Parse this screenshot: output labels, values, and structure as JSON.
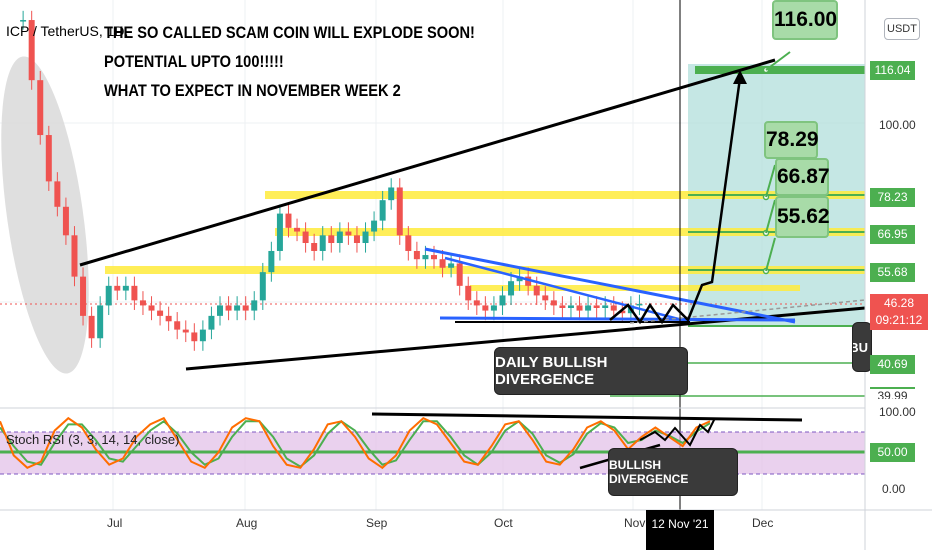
{
  "header": {
    "symbol": "ICP / TetherUS, 1D,",
    "currency_button": "USDT"
  },
  "annotations": {
    "title_lines": [
      "THE SO CALLED SCAM COIN WILL EXPLODE SOON!",
      "POTENTIAL  UPTO 100!!!!!",
      "WHAT TO EXPECT IN NOVEMBER WEEK 2"
    ],
    "daily_bullish_divergence": "DAILY BULLISH DIVERGENCE",
    "bullish_divergence": "BULLISH DIVERGENCE",
    "bu_partial": "BU",
    "targets": [
      "116.00",
      "78.29",
      "66.87",
      "55.62"
    ]
  },
  "indicator": {
    "name": "Stoch RSI (3, 3, 14, 14, close)",
    "levels": [
      "100.00",
      "50.00",
      "0.00"
    ]
  },
  "colors": {
    "up_candle": "#26a69a",
    "down_candle": "#ef5350",
    "yellow_zone": "#ffeb3b",
    "target_zone": "#b2dfdb",
    "trendline_blue": "#2962ff",
    "stoch_k": "#ff6d00",
    "stoch_d": "#4caf50",
    "stoch_band": "#e1bee7",
    "label_green": "#a5d6a7"
  },
  "chart_data": {
    "type": "candlestick",
    "symbol": "ICP / TetherUS",
    "timeframe": "1D",
    "x_axis": {
      "ticks": [
        "Jul",
        "Aug",
        "Sep",
        "Oct",
        "Nov",
        "12 Nov '21",
        "Dec"
      ]
    },
    "y_axis": {
      "scale": "log",
      "ticks": [
        "116.04",
        "100.00",
        "78.23",
        "66.95",
        "55.68",
        "46.28",
        "40.69",
        "39.99"
      ],
      "current_price": "46.28",
      "countdown": "09:21:12"
    },
    "horizontal_levels": [
      116.04,
      78.23,
      66.95,
      55.68,
      40.69,
      39.99
    ],
    "targets": [
      116.0,
      78.29,
      66.87,
      55.62
    ],
    "close_series": [
      {
        "date": "2021-06-10",
        "close": 155
      },
      {
        "date": "2021-06-12",
        "close": 120
      },
      {
        "date": "2021-06-14",
        "close": 95
      },
      {
        "date": "2021-06-16",
        "close": 78
      },
      {
        "date": "2021-06-18",
        "close": 70
      },
      {
        "date": "2021-06-20",
        "close": 62
      },
      {
        "date": "2021-06-22",
        "close": 52
      },
      {
        "date": "2021-06-24",
        "close": 44
      },
      {
        "date": "2021-06-26",
        "close": 40
      },
      {
        "date": "2021-06-28",
        "close": 46
      },
      {
        "date": "2021-06-30",
        "close": 50
      },
      {
        "date": "2021-07-02",
        "close": 49
      },
      {
        "date": "2021-07-04",
        "close": 50
      },
      {
        "date": "2021-07-06",
        "close": 47
      },
      {
        "date": "2021-07-08",
        "close": 46
      },
      {
        "date": "2021-07-10",
        "close": 45
      },
      {
        "date": "2021-07-12",
        "close": 44
      },
      {
        "date": "2021-07-14",
        "close": 43
      },
      {
        "date": "2021-07-16",
        "close": 41.5
      },
      {
        "date": "2021-07-18",
        "close": 41
      },
      {
        "date": "2021-07-20",
        "close": 39.5
      },
      {
        "date": "2021-07-22",
        "close": 41.5
      },
      {
        "date": "2021-07-24",
        "close": 44
      },
      {
        "date": "2021-07-26",
        "close": 46
      },
      {
        "date": "2021-07-28",
        "close": 45
      },
      {
        "date": "2021-07-30",
        "close": 46
      },
      {
        "date": "2021-08-01",
        "close": 45
      },
      {
        "date": "2021-08-03",
        "close": 47
      },
      {
        "date": "2021-08-05",
        "close": 53
      },
      {
        "date": "2021-08-07",
        "close": 58
      },
      {
        "date": "2021-08-09",
        "close": 68
      },
      {
        "date": "2021-08-11",
        "close": 64
      },
      {
        "date": "2021-08-13",
        "close": 63
      },
      {
        "date": "2021-08-15",
        "close": 60
      },
      {
        "date": "2021-08-17",
        "close": 58
      },
      {
        "date": "2021-08-19",
        "close": 62
      },
      {
        "date": "2021-08-21",
        "close": 60
      },
      {
        "date": "2021-08-23",
        "close": 63
      },
      {
        "date": "2021-08-25",
        "close": 62
      },
      {
        "date": "2021-08-27",
        "close": 60
      },
      {
        "date": "2021-08-29",
        "close": 63
      },
      {
        "date": "2021-08-31",
        "close": 66
      },
      {
        "date": "2021-09-02",
        "close": 72
      },
      {
        "date": "2021-09-04",
        "close": 76
      },
      {
        "date": "2021-09-06",
        "close": 62
      },
      {
        "date": "2021-09-08",
        "close": 58
      },
      {
        "date": "2021-09-10",
        "close": 56
      },
      {
        "date": "2021-09-12",
        "close": 57
      },
      {
        "date": "2021-09-14",
        "close": 56
      },
      {
        "date": "2021-09-16",
        "close": 54
      },
      {
        "date": "2021-09-18",
        "close": 55
      },
      {
        "date": "2021-09-20",
        "close": 50
      },
      {
        "date": "2021-09-22",
        "close": 47
      },
      {
        "date": "2021-09-24",
        "close": 46
      },
      {
        "date": "2021-09-26",
        "close": 45
      },
      {
        "date": "2021-09-28",
        "close": 46
      },
      {
        "date": "2021-09-30",
        "close": 48
      },
      {
        "date": "2021-10-02",
        "close": 51
      },
      {
        "date": "2021-10-04",
        "close": 52
      },
      {
        "date": "2021-10-06",
        "close": 50
      },
      {
        "date": "2021-10-08",
        "close": 48
      },
      {
        "date": "2021-10-10",
        "close": 47
      },
      {
        "date": "2021-10-12",
        "close": 46
      },
      {
        "date": "2021-10-14",
        "close": 45.5
      },
      {
        "date": "2021-10-16",
        "close": 46
      },
      {
        "date": "2021-10-18",
        "close": 45
      },
      {
        "date": "2021-10-20",
        "close": 46
      },
      {
        "date": "2021-10-22",
        "close": 45.5
      },
      {
        "date": "2021-10-24",
        "close": 46
      },
      {
        "date": "2021-10-26",
        "close": 45
      },
      {
        "date": "2021-10-28",
        "close": 44.5
      },
      {
        "date": "2021-10-30",
        "close": 46
      },
      {
        "date": "2021-11-01",
        "close": 46.3
      }
    ],
    "stoch_rsi": {
      "range": [
        0,
        100
      ],
      "k": [
        85,
        30,
        10,
        20,
        70,
        90,
        75,
        40,
        15,
        25,
        60,
        80,
        90,
        55,
        20,
        10,
        35,
        75,
        90,
        85,
        45,
        15,
        10,
        40,
        80,
        85,
        60,
        25,
        10,
        30,
        70,
        90,
        80,
        50,
        20,
        15,
        45,
        80,
        85,
        55,
        20,
        15,
        40,
        75,
        85,
        70,
        40,
        60,
        75,
        60,
        45,
        75,
        85
      ],
      "d": [
        75,
        45,
        20,
        15,
        50,
        80,
        80,
        55,
        25,
        20,
        45,
        70,
        85,
        65,
        35,
        15,
        25,
        60,
        85,
        85,
        60,
        25,
        12,
        30,
        65,
        85,
        70,
        40,
        15,
        22,
        55,
        85,
        85,
        60,
        30,
        15,
        35,
        70,
        85,
        65,
        30,
        18,
        32,
        65,
        82,
        75,
        50,
        55,
        70,
        62,
        50,
        68,
        82
      ]
    }
  }
}
